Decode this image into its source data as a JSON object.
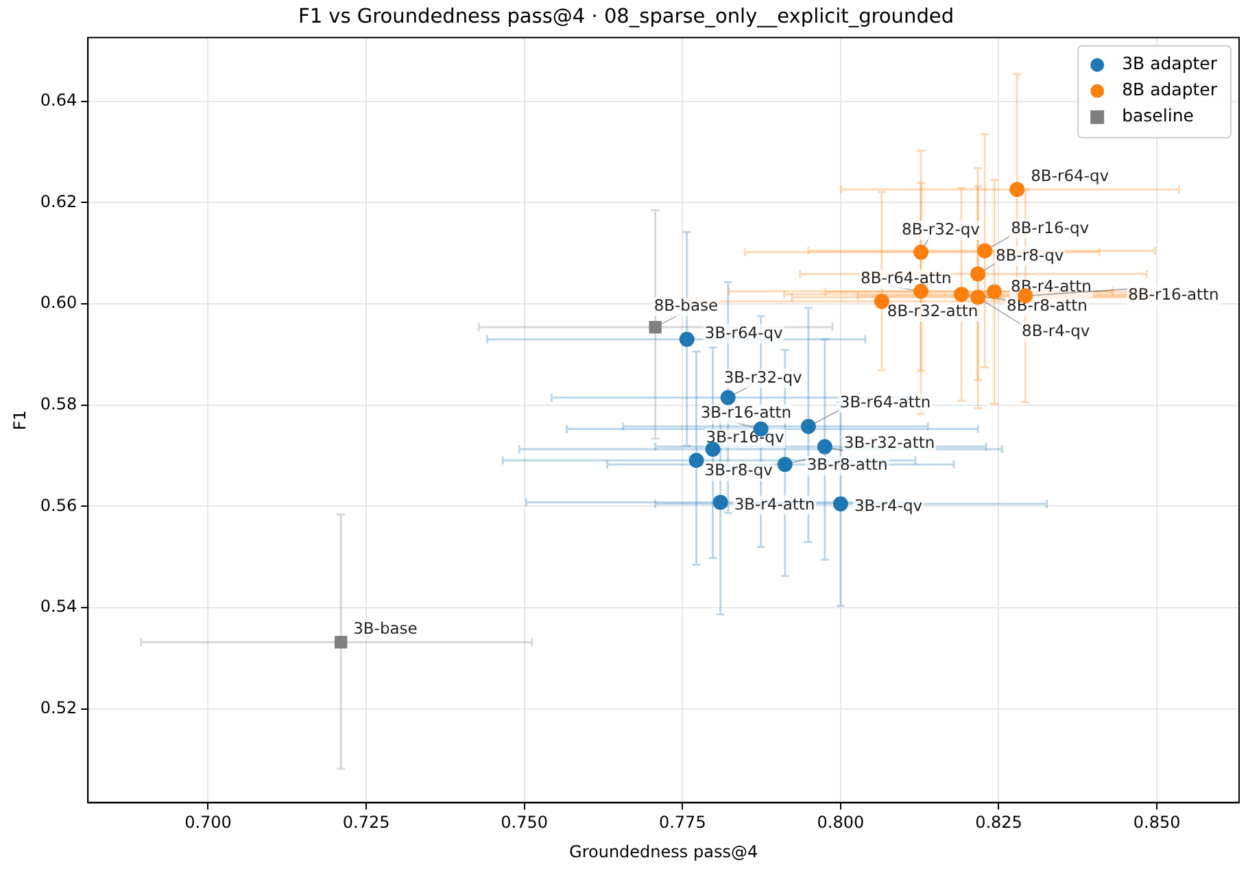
{
  "chart_data": {
    "type": "scatter",
    "title": "F1 vs Groundedness pass@4 · 08_sparse_only__explicit_grounded",
    "xlabel": "Groundedness pass@4",
    "ylabel": "F1",
    "xlim": [
      0.681,
      0.863
    ],
    "xticks": [
      {
        "value": 0.7,
        "label": "0.700"
      },
      {
        "value": 0.725,
        "label": "0.725"
      },
      {
        "value": 0.75,
        "label": "0.750"
      },
      {
        "value": 0.775,
        "label": "0.775"
      },
      {
        "value": 0.8,
        "label": "0.800"
      },
      {
        "value": 0.825,
        "label": "0.825"
      },
      {
        "value": 0.85,
        "label": "0.850"
      }
    ],
    "ylim": [
      0.5015,
      0.6526
    ],
    "yticks": [
      {
        "value": 0.52,
        "label": "0.52"
      },
      {
        "value": 0.54,
        "label": "0.54"
      },
      {
        "value": 0.56,
        "label": "0.56"
      },
      {
        "value": 0.58,
        "label": "0.58"
      },
      {
        "value": 0.6,
        "label": "0.60"
      },
      {
        "value": 0.62,
        "label": "0.62"
      },
      {
        "value": 0.64,
        "label": "0.64"
      }
    ],
    "grid": true,
    "legend": "top right",
    "series": [
      {
        "name": "3B adapter",
        "color": "#1f77b4",
        "marker": "circle",
        "x": [
          0.7757,
          0.7822,
          0.7874,
          0.7949,
          0.7975,
          0.7798,
          0.7772,
          0.7912,
          0.781,
          0.8
        ],
        "values": [
          0.593,
          0.5815,
          0.5753,
          0.5758,
          0.5718,
          0.5713,
          0.5691,
          0.5683,
          0.5608,
          0.5605
        ],
        "errors": [
          [
            0.572,
            0.6142
          ],
          [
            0.5587,
            0.6043
          ],
          [
            0.552,
            0.5976
          ],
          [
            0.553,
            0.5992
          ],
          [
            0.5495,
            0.593
          ],
          [
            0.5498,
            0.5914
          ],
          [
            0.5485,
            0.5906
          ],
          [
            0.5463,
            0.5909
          ],
          [
            0.5387,
            0.5796
          ],
          [
            0.5404,
            0.5806
          ]
        ],
        "xerrors": [
          [
            0.7441,
            0.8039
          ],
          [
            0.7543,
            0.8105
          ],
          [
            0.7567,
            0.8217
          ],
          [
            0.7656,
            0.8138
          ],
          [
            0.7707,
            0.823
          ],
          [
            0.7492,
            0.8255
          ],
          [
            0.7466,
            0.8118
          ],
          [
            0.7631,
            0.8179
          ],
          [
            0.7503,
            0.8105
          ],
          [
            0.7707,
            0.8326
          ]
        ]
      },
      {
        "name": "8B adapter",
        "color": "#ff7f0e",
        "marker": "circle",
        "x": [
          0.8279,
          0.8127,
          0.8228,
          0.8217,
          0.8127,
          0.8243,
          0.8292,
          0.8191,
          0.8217,
          0.8065
        ],
        "values": [
          0.6226,
          0.6102,
          0.6105,
          0.6059,
          0.6025,
          0.6024,
          0.6016,
          0.6019,
          0.6013,
          0.6005
        ],
        "errors": [
          0.0228,
          [
            0.5868,
            0.6303
          ],
          0.023,
          0.0209,
          [
            0.5783,
            0.6239
          ],
          0.0221,
          0.021,
          0.021,
          0.0219,
          [
            0.5869,
            0.6221
          ]
        ],
        "xerrors": [
          [
            0.8001,
            0.8535
          ],
          [
            0.7849,
            0.8409
          ],
          [
            0.7949,
            0.8497
          ],
          [
            0.7936,
            0.8484
          ],
          [
            0.7823,
            0.843
          ],
          [
            0.7976,
            0.849
          ],
          [
            0.8027,
            0.85
          ],
          [
            0.7911,
            0.847
          ],
          [
            0.7923,
            0.849
          ],
          [
            0.7772,
            0.836
          ]
        ]
      },
      {
        "name": "baseline",
        "color": "#7f7f7f",
        "marker": "square",
        "x": [
          0.7707,
          0.721
        ],
        "values": [
          0.5954,
          0.5332
        ],
        "errors": [
          [
            0.5734,
            0.6185
          ],
          [
            0.5082,
            0.5584
          ]
        ],
        "xerrors": [
          [
            0.7428,
            0.7987
          ],
          [
            0.6894,
            0.7512
          ]
        ]
      }
    ],
    "annotations": [
      {
        "text": "3B-r64-qv",
        "x": 0.7757,
        "y": 0.593
      },
      {
        "text": "3B-r32-qv",
        "x": 0.7822,
        "y": 0.5815
      },
      {
        "text": "3B-r16-attn",
        "x": 0.7874,
        "y": 0.5753
      },
      {
        "text": "3B-r64-attn",
        "x": 0.7949,
        "y": 0.5758
      },
      {
        "text": "3B-r32-attn",
        "x": 0.7975,
        "y": 0.5718
      },
      {
        "text": "3B-r16-qv",
        "x": 0.7798,
        "y": 0.5713
      },
      {
        "text": "3B-r8-qv",
        "x": 0.7772,
        "y": 0.5691
      },
      {
        "text": "3B-r8-attn",
        "x": 0.7912,
        "y": 0.5683
      },
      {
        "text": "3B-r4-attn",
        "x": 0.781,
        "y": 0.5608
      },
      {
        "text": "3B-r4-qv",
        "x": 0.8,
        "y": 0.5605
      },
      {
        "text": "8B-r64-qv",
        "x": 0.8279,
        "y": 0.6226
      },
      {
        "text": "8B-r32-qv",
        "x": 0.8127,
        "y": 0.6102
      },
      {
        "text": "8B-r16-qv",
        "x": 0.8228,
        "y": 0.6105
      },
      {
        "text": "8B-r8-qv",
        "x": 0.8217,
        "y": 0.6059
      },
      {
        "text": "8B-r64-attn",
        "x": 0.8127,
        "y": 0.6025
      },
      {
        "text": "8B-r4-attn",
        "x": 0.8243,
        "y": 0.6024
      },
      {
        "text": "8B-r16-attn",
        "x": 0.8292,
        "y": 0.6016
      },
      {
        "text": "8B-r8-attn",
        "x": 0.8191,
        "y": 0.6019
      },
      {
        "text": "8B-r4-qv",
        "x": 0.8217,
        "y": 0.6013
      },
      {
        "text": "8B-r32-attn",
        "x": 0.8065,
        "y": 0.6005
      },
      {
        "text": "8B-base",
        "x": 0.7707,
        "y": 0.5954
      },
      {
        "text": "3B-base",
        "x": 0.721,
        "y": 0.5332
      }
    ]
  }
}
